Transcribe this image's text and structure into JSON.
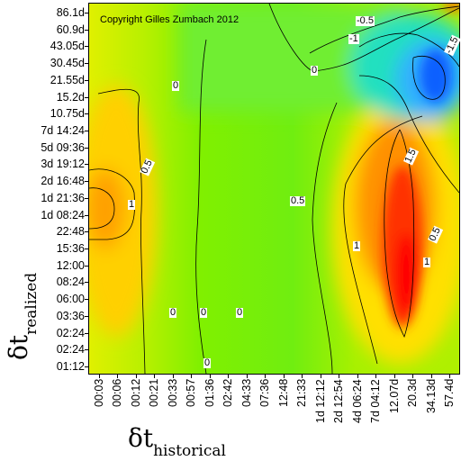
{
  "chart_data": {
    "type": "heatmap",
    "title": "",
    "copyright": "Copyright Gilles Zumbach 2012",
    "xlabel": {
      "symbol": "δt",
      "subscript": "historical"
    },
    "ylabel": {
      "symbol": "δt",
      "subscript": "realized"
    },
    "x_ticks": [
      "00:03",
      "00:06",
      "00:12",
      "00:21",
      "00:33",
      "00:57",
      "01:36",
      "02:42",
      "04:33",
      "07:36",
      "12:48",
      "21:33",
      "1d 12:12",
      "2d 12:54",
      "4d 06:24",
      "7d 04:12",
      "12.07d",
      "20.3d",
      "34.13d",
      "57.4d"
    ],
    "y_ticks": [
      "01:12",
      "02:24",
      "02:24",
      "03:36",
      "06:00",
      "08:24",
      "12:00",
      "15:36",
      "22:48",
      "1d 08:24",
      "1d 21:36",
      "2d 16:48",
      "3d 19:12",
      "5d 09:36",
      "7d 14:24",
      "10.75d",
      "15.2d",
      "21.55d",
      "30.45d",
      "43.05d",
      "60.9d",
      "86.1d"
    ],
    "contour_labels": [
      "-0.5",
      "-1",
      "-1.5",
      "0",
      "0",
      "0",
      "0",
      "0",
      "0",
      "0.5",
      "0.5",
      "0.5",
      "1",
      "1",
      "1",
      "1.5"
    ],
    "colorscale": [
      "#0000ff",
      "#00b8f0",
      "#00f0c0",
      "#00ff40",
      "#80ff00",
      "#ffff00",
      "#ffa000",
      "#ff4000",
      "#ff0000"
    ]
  }
}
